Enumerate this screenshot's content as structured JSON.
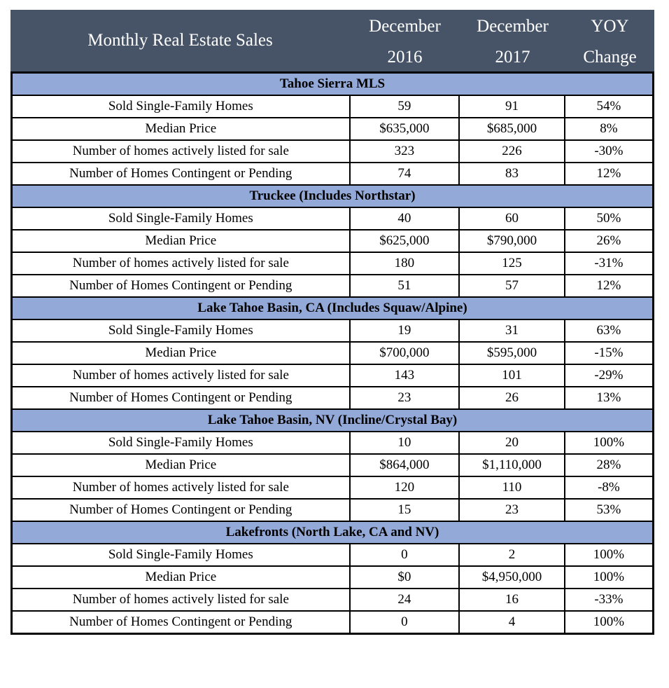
{
  "header": {
    "title": "Monthly Real Estate Sales",
    "col1": [
      "December",
      "2016"
    ],
    "col2": [
      "December",
      "2017"
    ],
    "col3": [
      "YOY",
      "Change"
    ]
  },
  "colors": {
    "header_bg": "#475467",
    "section_bg": "#93a9d7"
  },
  "sections": [
    {
      "title": "Tahoe Sierra MLS",
      "rows": [
        [
          "Sold Single-Family Homes",
          "59",
          "91",
          "54%"
        ],
        [
          "Median Price",
          "$635,000",
          "$685,000",
          "8%"
        ],
        [
          "Number of homes actively listed for sale",
          "323",
          "226",
          "-30%"
        ],
        [
          "Number of Homes Contingent or Pending",
          "74",
          "83",
          "12%"
        ]
      ]
    },
    {
      "title": "Truckee (Includes Northstar)",
      "rows": [
        [
          "Sold Single-Family Homes",
          "40",
          "60",
          "50%"
        ],
        [
          "Median Price",
          "$625,000",
          "$790,000",
          "26%"
        ],
        [
          "Number of homes actively listed for sale",
          "180",
          "125",
          "-31%"
        ],
        [
          "Number of Homes Contingent or Pending",
          "51",
          "57",
          "12%"
        ]
      ]
    },
    {
      "title": "Lake Tahoe Basin, CA (Includes Squaw/Alpine)",
      "rows": [
        [
          "Sold Single-Family Homes",
          "19",
          "31",
          "63%"
        ],
        [
          "Median Price",
          "$700,000",
          "$595,000",
          "-15%"
        ],
        [
          "Number of homes actively listed for sale",
          "143",
          "101",
          "-29%"
        ],
        [
          "Number of Homes Contingent or Pending",
          "23",
          "26",
          "13%"
        ]
      ]
    },
    {
      "title": "Lake Tahoe Basin, NV (Incline/Crystal Bay)",
      "rows": [
        [
          "Sold Single-Family Homes",
          "10",
          "20",
          "100%"
        ],
        [
          "Median Price",
          "$864,000",
          "$1,110,000",
          "28%"
        ],
        [
          "Number of homes actively listed for sale",
          "120",
          "110",
          "-8%"
        ],
        [
          "Number of Homes Contingent or Pending",
          "15",
          "23",
          "53%"
        ]
      ]
    },
    {
      "title": "Lakefronts (North Lake, CA and NV)",
      "rows": [
        [
          "Sold Single-Family Homes",
          "0",
          "2",
          "100%"
        ],
        [
          "Median Price",
          "$0",
          "$4,950,000",
          "100%"
        ],
        [
          "Number of homes actively listed for sale",
          "24",
          "16",
          "-33%"
        ],
        [
          "Number of Homes Contingent or Pending",
          "0",
          "4",
          "100%"
        ]
      ]
    }
  ]
}
